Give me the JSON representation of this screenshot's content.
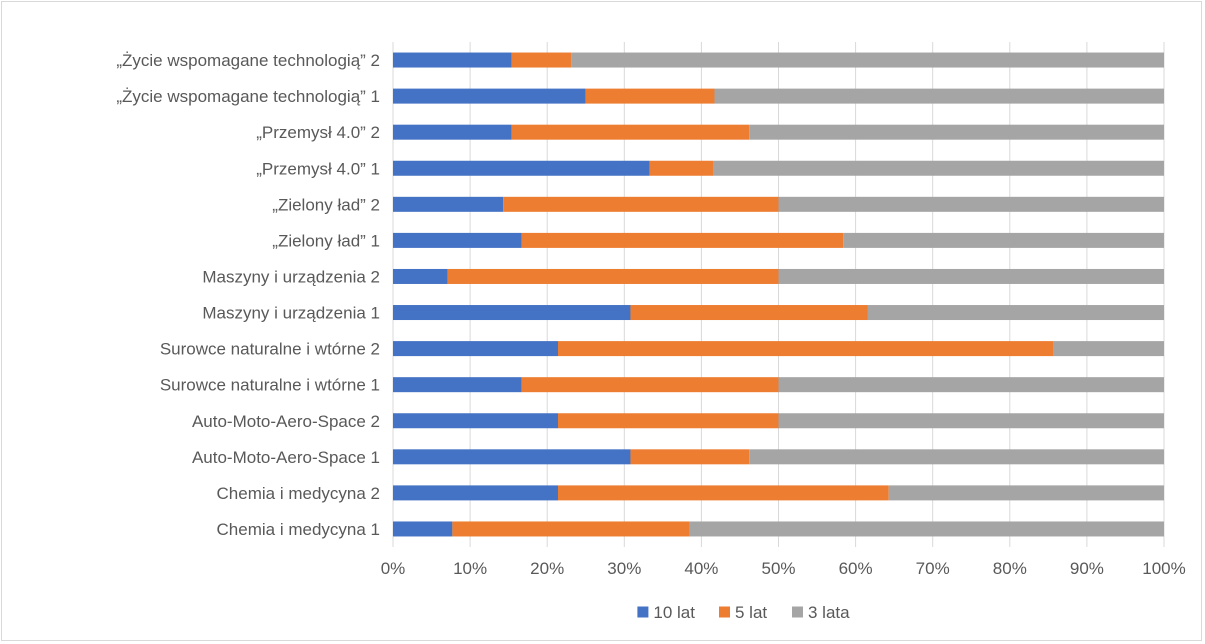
{
  "chart_data": {
    "type": "bar",
    "orientation": "horizontal",
    "stacked": "percent",
    "categories": [
      "Chemia i medycyna 1",
      "Chemia i medycyna 2",
      "Auto-Moto-Aero-Space 1",
      "Auto-Moto-Aero-Space 2",
      "Surowce naturalne i wtórne 1",
      "Surowce naturalne i wtórne 2",
      "Maszyny i urządzenia 1",
      "Maszyny i urządzenia 2",
      "„Zielony ład” 1",
      "„Zielony ład” 2",
      "„Przemysł 4.0” 1",
      "„Przemysł 4.0” 2",
      "„Życie wspomagane technologią” 1",
      "„Życie wspomagane technologią” 2"
    ],
    "series": [
      {
        "name": "10 lat",
        "color": "#4472c4",
        "values": [
          7.7,
          21.4,
          30.8,
          21.4,
          16.7,
          21.4,
          30.8,
          7.1,
          16.7,
          14.3,
          33.3,
          15.4,
          25.0,
          15.4
        ]
      },
      {
        "name": "5 lat",
        "color": "#ed7d31",
        "values": [
          30.8,
          42.9,
          15.4,
          28.6,
          33.3,
          64.3,
          30.8,
          42.9,
          41.7,
          35.7,
          8.3,
          30.8,
          16.7,
          7.7
        ]
      },
      {
        "name": "3 lata",
        "color": "#a5a5a5",
        "values": [
          61.5,
          35.7,
          53.8,
          50.0,
          50.0,
          14.3,
          38.4,
          50.0,
          41.6,
          50.0,
          58.4,
          53.8,
          58.3,
          76.9
        ]
      }
    ],
    "x_ticks": [
      "0%",
      "10%",
      "20%",
      "30%",
      "40%",
      "50%",
      "60%",
      "70%",
      "80%",
      "90%",
      "100%"
    ],
    "xlim": [
      0,
      100
    ],
    "grid": true,
    "legend_position": "bottom",
    "title": "",
    "xlabel": "",
    "ylabel": ""
  }
}
